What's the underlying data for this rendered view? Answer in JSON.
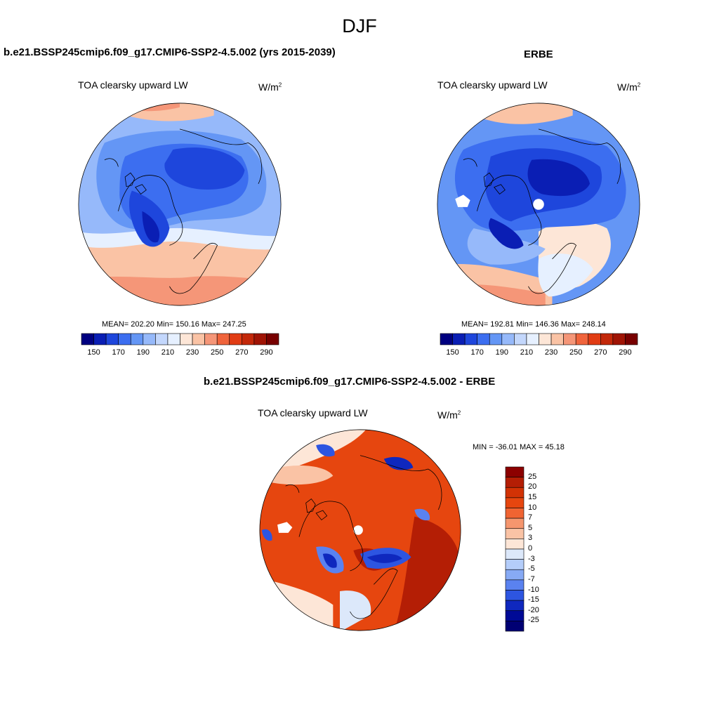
{
  "figure": {
    "season": "DJF"
  },
  "panels": {
    "model": {
      "title": "b.e21.BSSP245cmip6.f09_g17.CMIP6-SSP2-4.5.002 (yrs 2015-2039)",
      "variable": "TOA clearsky upward LW",
      "units_base": "W/m",
      "units_exp": "2",
      "stats": "MEAN= 202.20  Min= 150.16  Max= 247.25",
      "field": {
        "mean": 202.2,
        "min": 150.16,
        "max": 247.25
      }
    },
    "obs": {
      "title": "ERBE",
      "variable": "TOA clearsky upward LW",
      "units_base": "W/m",
      "units_exp": "2",
      "stats": "MEAN= 192.81  Min= 146.36  Max= 248.14",
      "field": {
        "mean": 192.81,
        "min": 146.36,
        "max": 248.14
      }
    },
    "diff": {
      "title": "b.e21.BSSP245cmip6.f09_g17.CMIP6-SSP2-4.5.002 - ERBE",
      "variable": "TOA clearsky upward LW",
      "units_base": "W/m",
      "units_exp": "2",
      "stats": "MIN = -36.01 MAX =  45.18",
      "field": {
        "min": -36.01,
        "max": 45.18
      }
    }
  },
  "colorbars": {
    "abs": {
      "labels": [
        "150",
        "170",
        "190",
        "210",
        "230",
        "250",
        "270",
        "290"
      ],
      "colors": [
        "#000080",
        "#0a1eb4",
        "#1e46dc",
        "#3c6ef0",
        "#6496f5",
        "#96b9fa",
        "#c3d7fc",
        "#e6f0ff",
        "#fde6d7",
        "#fac3a5",
        "#f59678",
        "#f0643c",
        "#e13c14",
        "#c3280a",
        "#a01405",
        "#780000"
      ]
    },
    "diff": {
      "labels": [
        "25",
        "20",
        "15",
        "10",
        "7",
        "5",
        "3",
        "0",
        "-3",
        "-5",
        "-7",
        "-10",
        "-15",
        "-20",
        "-25"
      ],
      "colors": [
        "#8c0000",
        "#b41e05",
        "#d23205",
        "#e6460f",
        "#f06432",
        "#f5966e",
        "#fac3a5",
        "#fde6d7",
        "#dce8fa",
        "#b4cdfa",
        "#87aaf5",
        "#5a82f0",
        "#2d55e1",
        "#0f28be",
        "#000a96",
        "#000073"
      ]
    }
  }
}
